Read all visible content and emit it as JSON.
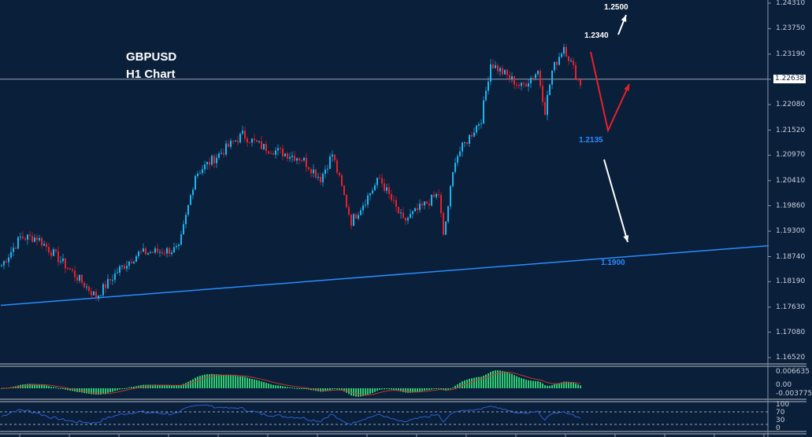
{
  "chart_data": {
    "type": "candlestick",
    "title": "GBPUSD",
    "subtitle": "H1 Chart",
    "symbol": "GBPUSD",
    "timeframe": "H1",
    "ylim": [
      1.162,
      1.2438
    ],
    "price_ticks": [
      "1.24310",
      "1.23750",
      "1.23190",
      "1.22638",
      "1.22080",
      "1.21520",
      "1.20970",
      "1.20410",
      "1.19860",
      "1.19300",
      "1.18740",
      "1.18190",
      "1.17630",
      "1.17080",
      "1.16520"
    ],
    "current_price": "1.22638",
    "close_waypoints": [
      [
        0,
        1.1855
      ],
      [
        8,
        1.1916
      ],
      [
        15,
        1.1916
      ],
      [
        27,
        1.1855
      ],
      [
        40,
        1.1786
      ],
      [
        50,
        1.1847
      ],
      [
        58,
        1.1881
      ],
      [
        75,
        1.189
      ],
      [
        82,
        1.2055
      ],
      [
        90,
        1.209
      ],
      [
        102,
        1.2142
      ],
      [
        110,
        1.2116
      ],
      [
        127,
        1.209
      ],
      [
        135,
        1.2046
      ],
      [
        140,
        1.2099
      ],
      [
        148,
        1.1951
      ],
      [
        160,
        1.2046
      ],
      [
        170,
        1.1951
      ],
      [
        185,
        1.2012
      ],
      [
        187,
        1.1916
      ],
      [
        192,
        1.209
      ],
      [
        203,
        1.2177
      ],
      [
        207,
        1.2299
      ],
      [
        220,
        1.2247
      ],
      [
        227,
        1.2282
      ],
      [
        230,
        1.2195
      ],
      [
        233,
        1.2282
      ],
      [
        238,
        1.2337
      ],
      [
        245,
        1.225
      ]
    ],
    "annotations": {
      "target_up": "1.2500",
      "resistance": "1.2340",
      "support": "1.2135",
      "trendline_target": "1.1900"
    },
    "trendline": [
      [
        0,
        1.1767
      ],
      [
        325,
        1.1898
      ]
    ],
    "colors": {
      "background": "#0a1f3a",
      "bull": "#1eb4f0",
      "bear": "#e8202a",
      "trendline": "#2a8cff",
      "macd_hist": "#2ecc71",
      "macd_signal": "#c0392b",
      "rsi": "#2f5fd0"
    },
    "macd": {
      "labels": [
        "0.006635",
        "0.00",
        "-0.003775"
      ]
    },
    "rsi": {
      "labels": [
        "100",
        "70",
        "30",
        "0"
      ]
    }
  }
}
